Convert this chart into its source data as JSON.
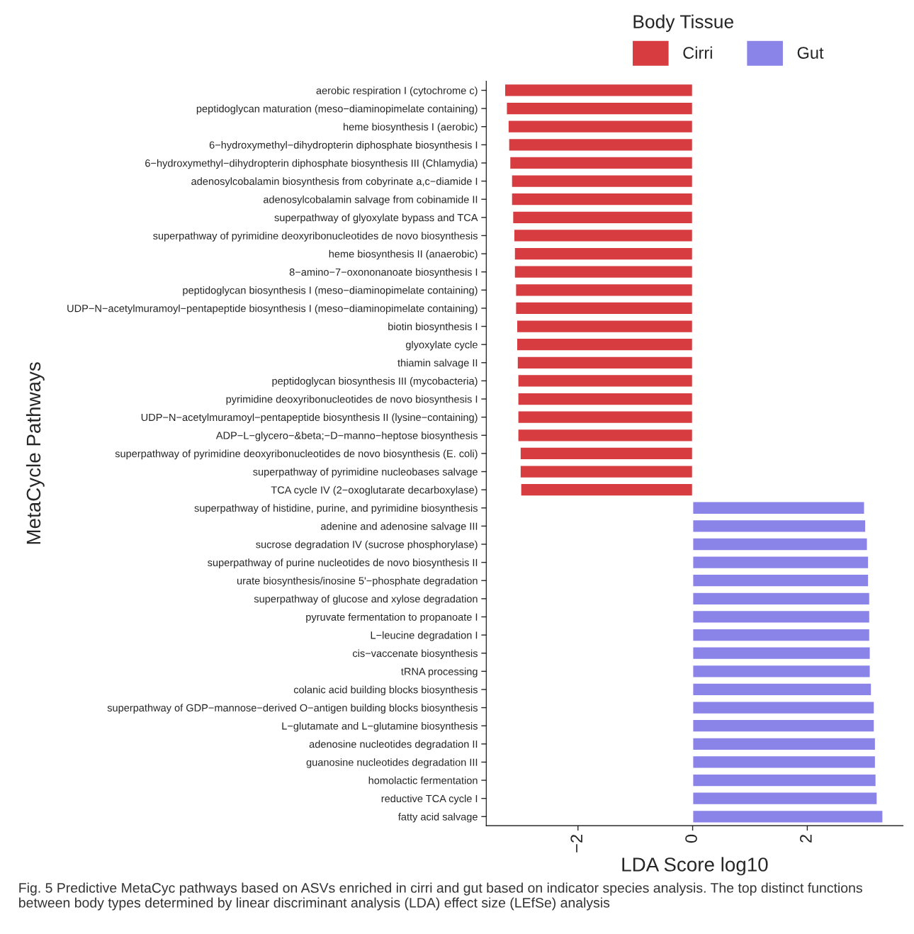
{
  "chart_data": {
    "type": "bar",
    "orientation": "horizontal",
    "xlabel": "LDA Score log10",
    "ylabel": "MetaCycle Pathways",
    "legend_title": "Body Tissue",
    "categories": [
      "aerobic respiration I (cytochrome c)",
      "peptidoglycan maturation (meso−diaminopimelate containing)",
      "heme biosynthesis I (aerobic)",
      "6−hydroxymethyl−dihydropterin diphosphate biosynthesis I",
      "6−hydroxymethyl−dihydropterin diphosphate biosynthesis III (Chlamydia)",
      "adenosylcobalamin biosynthesis from cobyrinate a,c−diamide I",
      "adenosylcobalamin salvage from cobinamide II",
      "superpathway of glyoxylate bypass and TCA",
      "superpathway of pyrimidine deoxyribonucleotides de novo biosynthesis",
      "heme biosynthesis II (anaerobic)",
      "8−amino−7−oxononanoate biosynthesis I",
      "peptidoglycan biosynthesis I (meso−diaminopimelate containing)",
      "UDP−N−acetylmuramoyl−pentapeptide biosynthesis I (meso−diaminopimelate containing)",
      "biotin biosynthesis I",
      "glyoxylate cycle",
      "thiamin salvage II",
      "peptidoglycan biosynthesis III (mycobacteria)",
      "pyrimidine deoxyribonucleotides de novo biosynthesis I",
      "UDP−N−acetylmuramoyl−pentapeptide biosynthesis II (lysine−containing)",
      "ADP−L−glycero−&beta;−D−manno−heptose biosynthesis",
      "superpathway of pyrimidine deoxyribonucleotides de novo biosynthesis (E. coli)",
      "superpathway of pyrimidine nucleobases salvage",
      "TCA cycle IV (2−oxoglutarate decarboxylase)",
      "superpathway of histidine, purine, and pyrimidine biosynthesis",
      "adenine and adenosine salvage III",
      "sucrose degradation IV (sucrose phosphorylase)",
      "superpathway of purine nucleotides de novo biosynthesis II",
      "urate biosynthesis/inosine 5'−phosphate degradation",
      "superpathway of glucose and xylose degradation",
      "pyruvate fermentation to propanoate I",
      "L−leucine degradation I",
      "cis−vaccenate biosynthesis",
      "tRNA processing",
      "colanic acid building blocks biosynthesis",
      "superpathway of GDP−mannose−derived O−antigen building blocks biosynthesis",
      "L−glutamate and L−glutamine biosynthesis",
      "adenosine nucleotides degradation II",
      "guanosine nucleotides degradation III",
      "homolactic fermentation",
      "reductive TCA cycle I",
      "fatty acid salvage"
    ],
    "series": [
      {
        "name": "Cirri",
        "color": "#d63c40",
        "values": [
          -3.28,
          -3.25,
          -3.22,
          -3.21,
          -3.19,
          -3.16,
          -3.16,
          -3.14,
          -3.12,
          -3.11,
          -3.11,
          -3.09,
          -3.09,
          -3.07,
          -3.07,
          -3.06,
          -3.05,
          -3.05,
          -3.05,
          -3.05,
          -3.01,
          -3.01,
          -3.0,
          null,
          null,
          null,
          null,
          null,
          null,
          null,
          null,
          null,
          null,
          null,
          null,
          null,
          null,
          null,
          null,
          null,
          null
        ]
      },
      {
        "name": "Gut",
        "color": "#8a83e8",
        "values": [
          null,
          null,
          null,
          null,
          null,
          null,
          null,
          null,
          null,
          null,
          null,
          null,
          null,
          null,
          null,
          null,
          null,
          null,
          null,
          null,
          null,
          null,
          null,
          3.0,
          3.02,
          3.05,
          3.07,
          3.07,
          3.09,
          3.09,
          3.09,
          3.1,
          3.1,
          3.12,
          3.17,
          3.17,
          3.19,
          3.19,
          3.2,
          3.22,
          3.32
        ]
      }
    ],
    "xlim": [
      -3.6,
      3.67
    ],
    "xticks": [
      {
        "value": -2,
        "label": "−2"
      },
      0,
      2
    ],
    "grid": false,
    "legend": "top",
    "annotations": [
      "Fig. 5 Predictive MetaCyc pathways based on ASVs enriched in cirri and gut based on indicator species analysis. The top distinct functions between body types determined by linear discriminant analysis (LDA) effect size (LEfSe) analysis"
    ]
  }
}
